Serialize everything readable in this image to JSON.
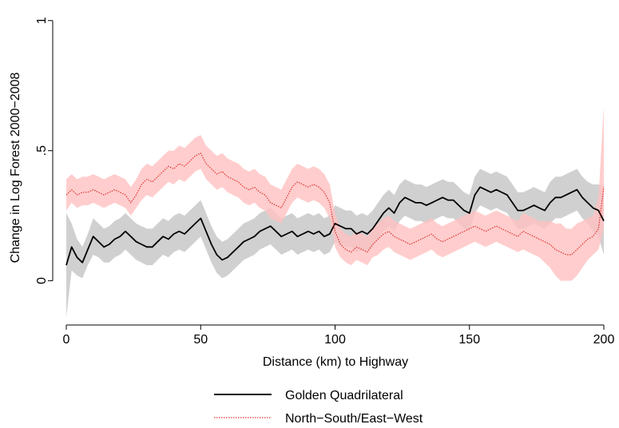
{
  "chart_data": {
    "type": "line",
    "title": "",
    "xlabel": "Distance (km) to Highway",
    "ylabel": "Change in Log Forest 2000−2008",
    "xlim": [
      0,
      200
    ],
    "ylim": [
      -0.17,
      1.03
    ],
    "x_ticks": [
      0,
      50,
      100,
      150,
      200
    ],
    "x_tick_labels": [
      "0",
      "50",
      "100",
      "150",
      "200"
    ],
    "y_ticks": [
      0,
      0.5,
      1
    ],
    "y_tick_labels": [
      "0",
      ".5",
      "1"
    ],
    "grid": false,
    "legend_position": "bottom",
    "band_note": "shaded bands show confidence intervals",
    "series": [
      {
        "name": "Golden Quadrilateral",
        "color": "#000000",
        "band_color": "#c8c8c8",
        "style": "solid",
        "x": [
          0,
          2,
          4,
          6,
          8,
          10,
          12,
          14,
          16,
          18,
          20,
          22,
          24,
          26,
          28,
          30,
          32,
          34,
          36,
          38,
          40,
          42,
          44,
          46,
          48,
          50,
          52,
          54,
          56,
          58,
          60,
          62,
          64,
          66,
          68,
          70,
          72,
          74,
          76,
          78,
          80,
          82,
          84,
          86,
          88,
          90,
          92,
          94,
          96,
          98,
          100,
          102,
          104,
          106,
          108,
          110,
          112,
          114,
          116,
          118,
          120,
          122,
          124,
          126,
          128,
          130,
          132,
          134,
          136,
          138,
          140,
          142,
          144,
          146,
          148,
          150,
          152,
          154,
          156,
          158,
          160,
          162,
          164,
          166,
          168,
          170,
          172,
          174,
          176,
          178,
          180,
          182,
          184,
          186,
          188,
          190,
          192,
          194,
          196,
          198,
          200
        ],
        "y": [
          0.06,
          0.13,
          0.09,
          0.07,
          0.12,
          0.17,
          0.15,
          0.13,
          0.14,
          0.16,
          0.17,
          0.19,
          0.17,
          0.15,
          0.14,
          0.13,
          0.13,
          0.15,
          0.17,
          0.16,
          0.18,
          0.19,
          0.18,
          0.2,
          0.22,
          0.24,
          0.19,
          0.14,
          0.1,
          0.08,
          0.09,
          0.11,
          0.13,
          0.15,
          0.16,
          0.17,
          0.19,
          0.2,
          0.21,
          0.19,
          0.17,
          0.18,
          0.19,
          0.17,
          0.18,
          0.19,
          0.18,
          0.19,
          0.17,
          0.18,
          0.22,
          0.21,
          0.2,
          0.2,
          0.18,
          0.19,
          0.18,
          0.2,
          0.23,
          0.26,
          0.28,
          0.26,
          0.3,
          0.32,
          0.31,
          0.3,
          0.3,
          0.29,
          0.3,
          0.31,
          0.32,
          0.31,
          0.31,
          0.29,
          0.27,
          0.26,
          0.33,
          0.36,
          0.35,
          0.34,
          0.35,
          0.34,
          0.33,
          0.3,
          0.27,
          0.27,
          0.28,
          0.29,
          0.28,
          0.27,
          0.3,
          0.32,
          0.32,
          0.33,
          0.34,
          0.35,
          0.32,
          0.3,
          0.28,
          0.27,
          0.23
        ],
        "lower": [
          -0.14,
          0.04,
          0.02,
          0.01,
          0.06,
          0.1,
          0.09,
          0.07,
          0.07,
          0.09,
          0.1,
          0.12,
          0.1,
          0.08,
          0.07,
          0.06,
          0.06,
          0.08,
          0.1,
          0.09,
          0.11,
          0.12,
          0.11,
          0.13,
          0.15,
          0.17,
          0.12,
          0.07,
          0.03,
          0.01,
          0.02,
          0.04,
          0.06,
          0.08,
          0.09,
          0.1,
          0.12,
          0.13,
          0.14,
          0.12,
          0.1,
          0.11,
          0.12,
          0.1,
          0.11,
          0.12,
          0.11,
          0.12,
          0.1,
          0.11,
          0.15,
          0.14,
          0.13,
          0.13,
          0.11,
          0.12,
          0.11,
          0.13,
          0.16,
          0.19,
          0.21,
          0.19,
          0.23,
          0.25,
          0.24,
          0.23,
          0.23,
          0.22,
          0.23,
          0.24,
          0.25,
          0.24,
          0.24,
          0.22,
          0.2,
          0.19,
          0.26,
          0.29,
          0.28,
          0.27,
          0.28,
          0.27,
          0.26,
          0.23,
          0.2,
          0.2,
          0.21,
          0.22,
          0.21,
          0.2,
          0.22,
          0.24,
          0.24,
          0.25,
          0.26,
          0.27,
          0.24,
          0.22,
          0.19,
          0.17,
          0.1
        ],
        "upper": [
          0.26,
          0.22,
          0.16,
          0.13,
          0.18,
          0.24,
          0.22,
          0.2,
          0.21,
          0.23,
          0.24,
          0.26,
          0.24,
          0.22,
          0.21,
          0.2,
          0.2,
          0.22,
          0.24,
          0.23,
          0.25,
          0.26,
          0.25,
          0.27,
          0.29,
          0.31,
          0.26,
          0.21,
          0.17,
          0.15,
          0.16,
          0.18,
          0.2,
          0.22,
          0.23,
          0.24,
          0.26,
          0.27,
          0.28,
          0.26,
          0.24,
          0.25,
          0.26,
          0.24,
          0.25,
          0.26,
          0.25,
          0.26,
          0.24,
          0.25,
          0.29,
          0.28,
          0.27,
          0.27,
          0.25,
          0.26,
          0.25,
          0.27,
          0.3,
          0.33,
          0.35,
          0.33,
          0.37,
          0.39,
          0.38,
          0.37,
          0.37,
          0.36,
          0.37,
          0.38,
          0.39,
          0.38,
          0.38,
          0.36,
          0.34,
          0.33,
          0.4,
          0.43,
          0.42,
          0.41,
          0.42,
          0.41,
          0.4,
          0.37,
          0.34,
          0.34,
          0.35,
          0.36,
          0.35,
          0.34,
          0.38,
          0.4,
          0.4,
          0.41,
          0.42,
          0.43,
          0.4,
          0.38,
          0.37,
          0.37,
          0.36
        ]
      },
      {
        "name": "North−South/East−West",
        "color": "#e03030",
        "band_color": "#ffc0c0",
        "style": "dotted",
        "x": [
          0,
          2,
          4,
          6,
          8,
          10,
          12,
          14,
          16,
          18,
          20,
          22,
          24,
          26,
          28,
          30,
          32,
          34,
          36,
          38,
          40,
          42,
          44,
          46,
          48,
          50,
          52,
          54,
          56,
          58,
          60,
          62,
          64,
          66,
          68,
          70,
          72,
          74,
          76,
          78,
          80,
          82,
          84,
          86,
          88,
          90,
          92,
          94,
          96,
          98,
          100,
          102,
          104,
          106,
          108,
          110,
          112,
          114,
          116,
          118,
          120,
          122,
          124,
          126,
          128,
          130,
          132,
          134,
          136,
          138,
          140,
          142,
          144,
          146,
          148,
          150,
          152,
          154,
          156,
          158,
          160,
          162,
          164,
          166,
          168,
          170,
          172,
          174,
          176,
          178,
          180,
          182,
          184,
          186,
          188,
          190,
          192,
          194,
          196,
          198,
          200
        ],
        "y": [
          0.33,
          0.35,
          0.33,
          0.34,
          0.34,
          0.35,
          0.34,
          0.33,
          0.34,
          0.35,
          0.34,
          0.33,
          0.3,
          0.33,
          0.37,
          0.39,
          0.38,
          0.4,
          0.42,
          0.44,
          0.43,
          0.45,
          0.44,
          0.46,
          0.48,
          0.49,
          0.45,
          0.43,
          0.41,
          0.42,
          0.4,
          0.39,
          0.38,
          0.36,
          0.35,
          0.36,
          0.34,
          0.33,
          0.3,
          0.29,
          0.28,
          0.32,
          0.36,
          0.38,
          0.37,
          0.36,
          0.37,
          0.36,
          0.34,
          0.3,
          0.19,
          0.14,
          0.12,
          0.11,
          0.13,
          0.12,
          0.11,
          0.14,
          0.16,
          0.18,
          0.19,
          0.17,
          0.16,
          0.15,
          0.14,
          0.15,
          0.16,
          0.17,
          0.18,
          0.16,
          0.15,
          0.16,
          0.17,
          0.18,
          0.19,
          0.2,
          0.21,
          0.2,
          0.19,
          0.2,
          0.21,
          0.2,
          0.19,
          0.18,
          0.17,
          0.19,
          0.18,
          0.17,
          0.16,
          0.15,
          0.14,
          0.12,
          0.11,
          0.1,
          0.1,
          0.12,
          0.14,
          0.16,
          0.17,
          0.2,
          0.36
        ],
        "lower": [
          0.27,
          0.3,
          0.28,
          0.29,
          0.29,
          0.3,
          0.29,
          0.28,
          0.29,
          0.3,
          0.29,
          0.28,
          0.25,
          0.28,
          0.31,
          0.33,
          0.32,
          0.34,
          0.36,
          0.38,
          0.37,
          0.39,
          0.38,
          0.4,
          0.42,
          0.43,
          0.39,
          0.37,
          0.35,
          0.36,
          0.34,
          0.33,
          0.32,
          0.3,
          0.29,
          0.3,
          0.28,
          0.27,
          0.24,
          0.23,
          0.22,
          0.26,
          0.3,
          0.32,
          0.31,
          0.3,
          0.31,
          0.3,
          0.28,
          0.24,
          0.13,
          0.09,
          0.07,
          0.06,
          0.08,
          0.07,
          0.06,
          0.09,
          0.1,
          0.12,
          0.13,
          0.11,
          0.1,
          0.09,
          0.08,
          0.09,
          0.1,
          0.11,
          0.12,
          0.1,
          0.09,
          0.1,
          0.11,
          0.12,
          0.13,
          0.14,
          0.15,
          0.14,
          0.13,
          0.14,
          0.15,
          0.14,
          0.13,
          0.12,
          0.11,
          0.12,
          0.11,
          0.1,
          0.09,
          0.07,
          0.05,
          0.02,
          0.0,
          0.0,
          0.0,
          0.02,
          0.05,
          0.08,
          0.1,
          0.12,
          0.2
        ],
        "upper": [
          0.39,
          0.41,
          0.39,
          0.4,
          0.4,
          0.41,
          0.4,
          0.39,
          0.4,
          0.41,
          0.4,
          0.39,
          0.36,
          0.39,
          0.43,
          0.45,
          0.44,
          0.46,
          0.48,
          0.5,
          0.5,
          0.52,
          0.51,
          0.53,
          0.55,
          0.56,
          0.52,
          0.5,
          0.48,
          0.49,
          0.47,
          0.46,
          0.45,
          0.43,
          0.42,
          0.43,
          0.41,
          0.4,
          0.37,
          0.36,
          0.35,
          0.39,
          0.43,
          0.45,
          0.44,
          0.43,
          0.44,
          0.43,
          0.41,
          0.37,
          0.26,
          0.2,
          0.18,
          0.17,
          0.19,
          0.18,
          0.17,
          0.2,
          0.22,
          0.24,
          0.25,
          0.23,
          0.22,
          0.21,
          0.2,
          0.21,
          0.22,
          0.23,
          0.24,
          0.22,
          0.21,
          0.22,
          0.23,
          0.24,
          0.25,
          0.26,
          0.27,
          0.26,
          0.25,
          0.26,
          0.27,
          0.26,
          0.25,
          0.24,
          0.23,
          0.26,
          0.25,
          0.24,
          0.23,
          0.23,
          0.23,
          0.22,
          0.22,
          0.2,
          0.2,
          0.22,
          0.23,
          0.24,
          0.25,
          0.32,
          0.67
        ]
      }
    ]
  }
}
